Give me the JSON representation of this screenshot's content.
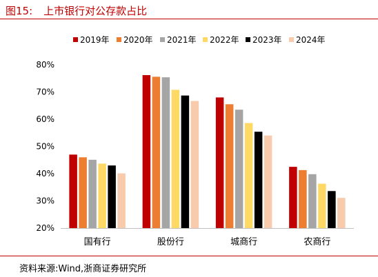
{
  "figure": {
    "label": "图15:",
    "title": "上市银行对公存款占比"
  },
  "source": "资料来源:Wind,浙商证券研究所",
  "chart_data": {
    "type": "bar",
    "categories": [
      "国有行",
      "股份行",
      "城商行",
      "农商行"
    ],
    "series": [
      {
        "name": "2019年",
        "color": "#c00000",
        "values": [
          47.0,
          76.2,
          68.0,
          42.5
        ]
      },
      {
        "name": "2020年",
        "color": "#ed7d31",
        "values": [
          46.0,
          75.6,
          65.5,
          41.3
        ]
      },
      {
        "name": "2021年",
        "color": "#a5a5a5",
        "values": [
          45.1,
          75.4,
          63.5,
          39.8
        ]
      },
      {
        "name": "2022年",
        "color": "#ffd966",
        "values": [
          43.7,
          70.8,
          58.6,
          36.3
        ]
      },
      {
        "name": "2023年",
        "color": "#000000",
        "values": [
          43.0,
          68.7,
          55.4,
          33.6
        ]
      },
      {
        "name": "2024年",
        "color": "#f8cbad",
        "values": [
          40.1,
          66.7,
          54.0,
          31.1
        ]
      }
    ],
    "yticks": [
      "20%",
      "30%",
      "40%",
      "50%",
      "60%",
      "70%",
      "80%"
    ],
    "ylim": [
      20,
      80
    ],
    "legend_position": "top",
    "grid": false
  }
}
